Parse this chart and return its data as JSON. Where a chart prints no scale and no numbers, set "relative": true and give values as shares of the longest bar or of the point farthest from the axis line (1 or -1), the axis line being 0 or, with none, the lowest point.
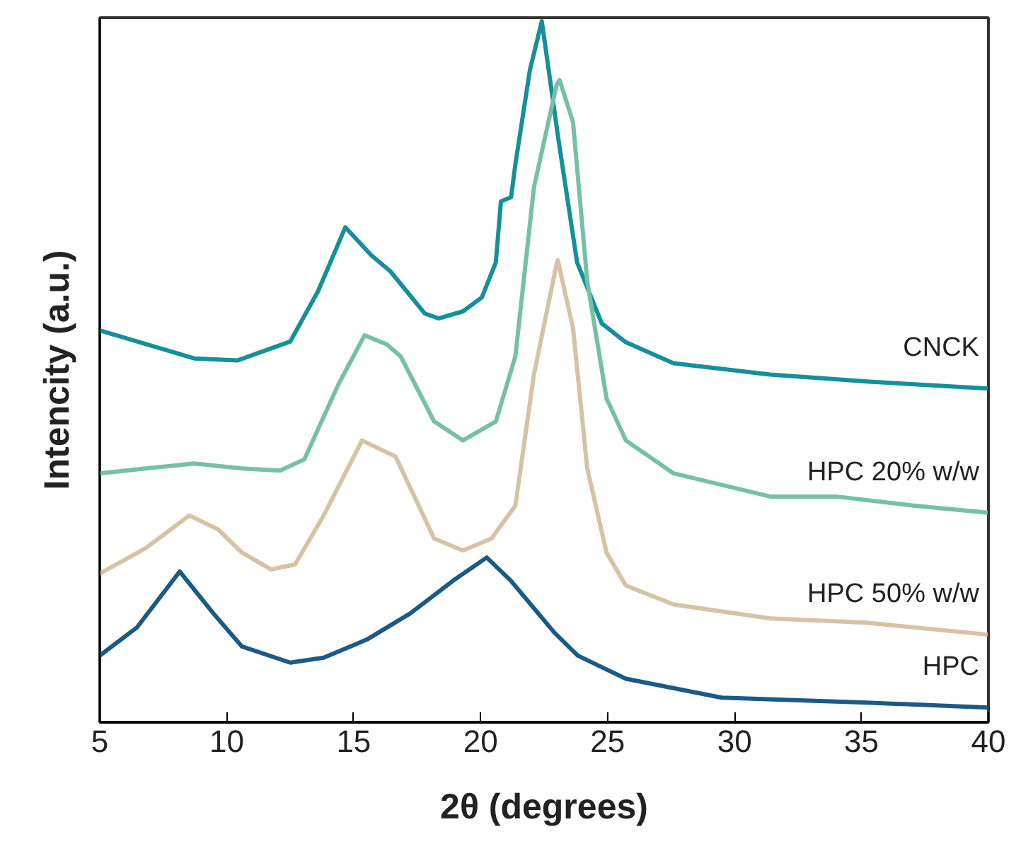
{
  "chart_data": {
    "type": "line",
    "xlabel": "2θ (degrees)",
    "ylabel": "Intencity (a.u.)",
    "relative": true,
    "xlim": [
      5,
      40
    ],
    "xticks": [
      5,
      10,
      15,
      20,
      25,
      30,
      35,
      40
    ],
    "grid": false,
    "legend": false,
    "line_style": "solid",
    "marker": "none",
    "series": [
      {
        "name": "CNCK",
        "color": "#13909a",
        "x": [
          5,
          8.72,
          10.42,
          12.5,
          13.6,
          14.67,
          15.7,
          16.45,
          17.8,
          18.35,
          19.3,
          20.05,
          20.6,
          20.8,
          21.2,
          21.37,
          21.94,
          22.41,
          23.07,
          23.8,
          24.77,
          25.72,
          27.6,
          31.4,
          35.2,
          39.97
        ],
        "values": [
          0.559,
          0.519,
          0.516,
          0.543,
          0.615,
          0.706,
          0.666,
          0.643,
          0.583,
          0.576,
          0.586,
          0.606,
          0.656,
          0.743,
          0.749,
          0.796,
          0.93,
          1.0,
          0.83,
          0.656,
          0.569,
          0.542,
          0.512,
          0.496,
          0.486,
          0.476
        ]
      },
      {
        "name": "HPC 20% w/w",
        "color": "#76c0a8",
        "x": [
          5,
          6.8,
          8.72,
          10.6,
          12.1,
          13.06,
          14.4,
          15.43,
          16.3,
          16.85,
          18.17,
          19.3,
          20.6,
          21.37,
          22.1,
          23.0,
          23.11,
          23.64,
          24.2,
          24.96,
          25.72,
          27.6,
          31.4,
          34.0,
          37.05,
          39.97
        ],
        "values": [
          0.355,
          0.362,
          0.369,
          0.362,
          0.359,
          0.375,
          0.482,
          0.552,
          0.539,
          0.522,
          0.429,
          0.402,
          0.429,
          0.522,
          0.763,
          0.91,
          0.916,
          0.856,
          0.629,
          0.462,
          0.402,
          0.355,
          0.322,
          0.322,
          0.309,
          0.299
        ]
      },
      {
        "name": "HPC 50% w/w",
        "color": "#d5c3a5",
        "x": [
          5,
          6.8,
          8.53,
          9.66,
          10.6,
          11.74,
          12.69,
          13.82,
          15.33,
          16.65,
          18.17,
          19.3,
          20.43,
          21.37,
          22.1,
          23.0,
          23.04,
          23.64,
          24.2,
          24.96,
          25.72,
          27.6,
          31.4,
          35.2,
          39.97
        ],
        "values": [
          0.212,
          0.248,
          0.295,
          0.275,
          0.242,
          0.218,
          0.225,
          0.295,
          0.402,
          0.379,
          0.262,
          0.245,
          0.262,
          0.309,
          0.496,
          0.655,
          0.659,
          0.562,
          0.362,
          0.242,
          0.195,
          0.168,
          0.148,
          0.142,
          0.125
        ]
      },
      {
        "name": "HPC",
        "color": "#1a5a85",
        "x": [
          5,
          6.46,
          8.15,
          9.48,
          10.6,
          12.5,
          13.82,
          15.52,
          17.22,
          18.92,
          20.24,
          21.19,
          22.9,
          23.83,
          25.72,
          29.5,
          35.2,
          39.97
        ],
        "values": [
          0.095,
          0.135,
          0.215,
          0.155,
          0.108,
          0.085,
          0.092,
          0.118,
          0.155,
          0.202,
          0.235,
          0.202,
          0.128,
          0.095,
          0.062,
          0.035,
          0.028,
          0.021
        ]
      }
    ]
  }
}
